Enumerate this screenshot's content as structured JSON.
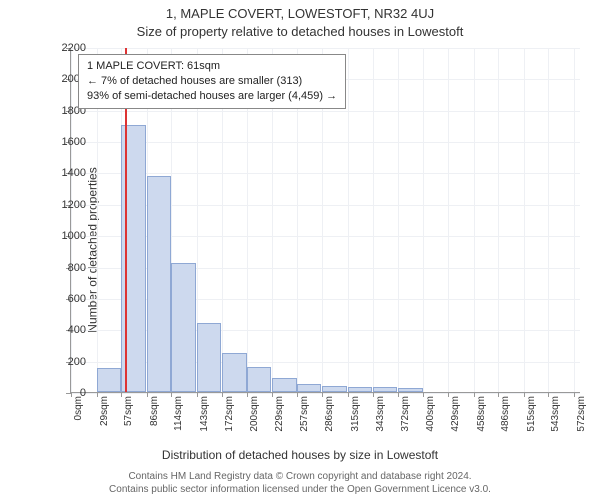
{
  "title_line1": "1, MAPLE COVERT, LOWESTOFT, NR32 4UJ",
  "title_line2": "Size of property relative to detached houses in Lowestoft",
  "y_axis_label": "Number of detached properties",
  "x_axis_label": "Distribution of detached houses by size in Lowestoft",
  "attribution_line1": "Contains HM Land Registry data © Crown copyright and database right 2024.",
  "attribution_line2": "Contains public sector information licensed under the Open Government Licence v3.0.",
  "chart": {
    "type": "histogram",
    "background_color": "#ffffff",
    "grid_color": "#eef0f4",
    "axis_color": "#999999",
    "bar_fill": "#cdd9ee",
    "bar_border": "#8fa8d4",
    "marker_color": "#d33",
    "marker_x_value": 61,
    "xlim": [
      0,
      580
    ],
    "ylim": [
      0,
      2200
    ],
    "ytick_step": 200,
    "xticks": [
      0,
      29,
      57,
      86,
      114,
      143,
      172,
      200,
      229,
      257,
      286,
      315,
      343,
      372,
      400,
      429,
      458,
      486,
      515,
      543,
      572
    ],
    "xtick_unit": "sqm",
    "bar_width_value": 29,
    "bars": [
      {
        "x": 29,
        "count": 150
      },
      {
        "x": 57,
        "count": 1700
      },
      {
        "x": 86,
        "count": 1380
      },
      {
        "x": 114,
        "count": 820
      },
      {
        "x": 143,
        "count": 440
      },
      {
        "x": 172,
        "count": 250
      },
      {
        "x": 200,
        "count": 160
      },
      {
        "x": 229,
        "count": 90
      },
      {
        "x": 257,
        "count": 50
      },
      {
        "x": 286,
        "count": 40
      },
      {
        "x": 315,
        "count": 35
      },
      {
        "x": 343,
        "count": 30
      },
      {
        "x": 372,
        "count": 25
      }
    ]
  },
  "info_box": {
    "line1": "1 MAPLE COVERT: 61sqm",
    "line2": "← 7% of detached houses are smaller (313)",
    "line3": "93% of semi-detached houses are larger (4,459) →",
    "border_color": "#888888",
    "background": "#ffffff",
    "fontsize": 11
  },
  "yticks": [
    0,
    200,
    400,
    600,
    800,
    1000,
    1200,
    1400,
    1600,
    1800,
    2000,
    2200
  ]
}
